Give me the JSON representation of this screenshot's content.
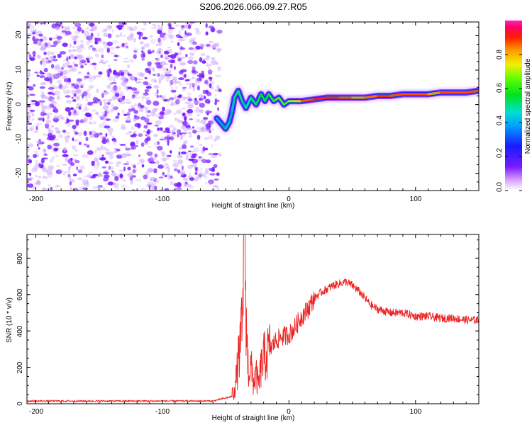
{
  "figure": {
    "title": "S206.2026.066.09.27.R05"
  },
  "colors": {
    "background": "#ffffff",
    "axis": "#000000",
    "noise": "#7a1aff",
    "snr_line": "#ee2222"
  },
  "chart_data": [
    {
      "type": "heatmap",
      "name": "spectrogram",
      "xlabel": "Height of straight line (km)",
      "ylabel": "Frequency (Hz)",
      "xlim": [
        -207,
        150
      ],
      "ylim": [
        -25,
        24
      ],
      "xticks": [
        -200,
        -100,
        0,
        100
      ],
      "yticks": [
        -20,
        -10,
        0,
        10,
        20
      ],
      "colorbar": {
        "label": "Normalized spectral amplitude",
        "range": [
          0,
          1
        ],
        "ticks": [
          "0.0",
          "0.2",
          "0.4",
          "0.6",
          "0.8"
        ],
        "tick_values": [
          0,
          0.2,
          0.4,
          0.6,
          0.8
        ],
        "colormap": "hsv-rainbow (violet low, red high)"
      },
      "noise_region": {
        "x_range": [
          -207,
          -55
        ],
        "freq_range": [
          -25,
          24
        ]
      },
      "ridge": {
        "x": [
          -57,
          -50,
          -47,
          -45,
          -43,
          -40,
          -37,
          -34,
          -30,
          -26,
          -22,
          -19,
          -16,
          -12,
          -8,
          -4,
          0,
          4,
          10,
          20,
          30,
          40,
          50,
          60,
          70,
          80,
          90,
          100,
          110,
          120,
          130,
          140,
          150
        ],
        "freq": [
          -4,
          -7,
          -5,
          -2,
          2,
          4,
          1,
          -1,
          2,
          0,
          3,
          1,
          3,
          1,
          2,
          0,
          1,
          1,
          1,
          1.5,
          2,
          2,
          2,
          2,
          2.5,
          2.5,
          3,
          3,
          3,
          3.5,
          3.5,
          3.5,
          4
        ],
        "amplitude": [
          0.3,
          0.5,
          0.4,
          0.4,
          0.5,
          0.6,
          0.5,
          0.4,
          0.6,
          0.5,
          0.7,
          0.5,
          0.7,
          0.6,
          0.8,
          0.6,
          0.8,
          0.8,
          0.9,
          1.0,
          1.0,
          1.0,
          0.9,
          0.9,
          0.95,
          1.0,
          0.9,
          1.0,
          0.9,
          0.9,
          1.0,
          0.9,
          1.0
        ]
      }
    },
    {
      "type": "line",
      "name": "snr",
      "xlabel": "Height of straight line (km)",
      "ylabel": "SNR (10 * v/v)",
      "xlim": [
        -207,
        150
      ],
      "ylim": [
        0,
        930
      ],
      "xticks": [
        -200,
        -100,
        0,
        100
      ],
      "yticks": [
        0,
        200,
        400,
        600,
        800
      ],
      "series": [
        {
          "name": "SNR",
          "x": [
            -207,
            -150,
            -100,
            -60,
            -45,
            -42,
            -38,
            -36,
            -35,
            -34,
            -33,
            -32,
            -30,
            -28,
            -26,
            -24,
            -22,
            -20,
            -15,
            -10,
            -5,
            0,
            5,
            10,
            15,
            20,
            25,
            30,
            35,
            40,
            45,
            50,
            55,
            60,
            65,
            70,
            75,
            80,
            90,
            100,
            110,
            120,
            130,
            140,
            150
          ],
          "y": [
            15,
            15,
            15,
            15,
            40,
            120,
            350,
            500,
            930,
            550,
            300,
            180,
            200,
            120,
            160,
            100,
            200,
            250,
            300,
            350,
            370,
            380,
            420,
            480,
            520,
            580,
            610,
            630,
            650,
            660,
            670,
            650,
            620,
            580,
            540,
            520,
            510,
            500,
            500,
            480,
            480,
            470,
            470,
            460,
            460
          ]
        }
      ]
    }
  ]
}
